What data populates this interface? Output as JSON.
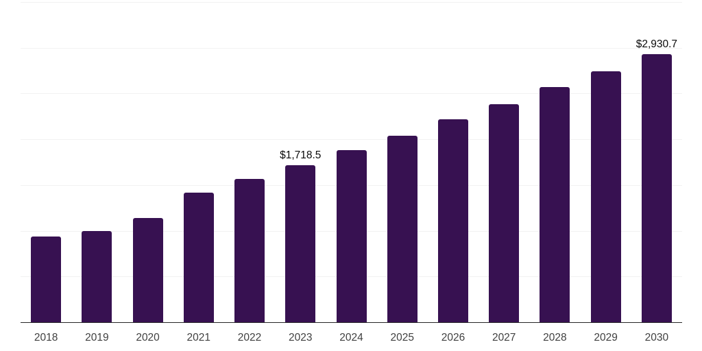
{
  "chart_data": {
    "type": "bar",
    "title": "",
    "xlabel": "",
    "ylabel": "",
    "categories": [
      "2018",
      "2019",
      "2020",
      "2021",
      "2022",
      "2023",
      "2024",
      "2025",
      "2026",
      "2027",
      "2028",
      "2029",
      "2030"
    ],
    "values": [
      940,
      1000,
      1140,
      1420,
      1570,
      1718.5,
      1880,
      2040,
      2215,
      2385,
      2570,
      2740,
      2930.7
    ],
    "data_labels": [
      "",
      "",
      "",
      "",
      "",
      "$1,718.5",
      "",
      "",
      "",
      "",
      "",
      "",
      "$2,930.7"
    ],
    "ylim": [
      0,
      3500
    ],
    "gridline_step": 500,
    "grid": true,
    "legend_position": "none",
    "y_axis_labels_visible": false,
    "colors": {
      "bar": "#371151",
      "gridline": "#f2f2f2",
      "axis_line": "#262626",
      "tick_label": "#404040",
      "value_label": "#0a0a0a",
      "background": "#ffffff"
    }
  }
}
